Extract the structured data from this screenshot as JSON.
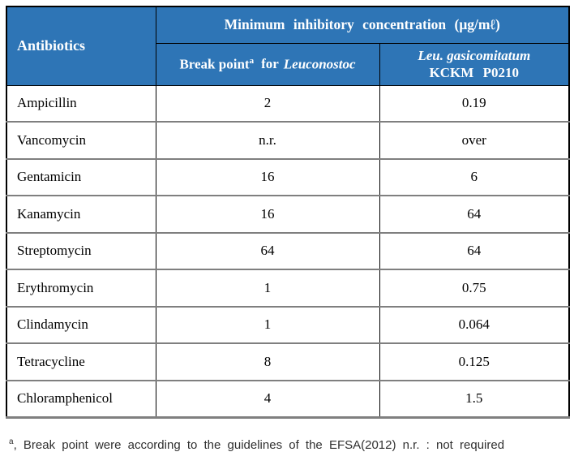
{
  "table": {
    "colors": {
      "header_bg": "#2E75B6",
      "header_text": "#ffffff",
      "row_divider": "#7f7f7f",
      "outer_border": "#000000"
    },
    "header": {
      "antibiotics_label": "Antibiotics",
      "mic_title": "Minimum inhibitory concentration (μg/mℓ)",
      "breakpoint_col": {
        "prefix": "Break point",
        "superscript": "a",
        "mid": "for",
        "species": "Leuconostoc"
      },
      "strain_col": {
        "line1": "Leu. gasicomitatum",
        "line2": "KCKM P0210"
      }
    },
    "rows": [
      {
        "name": "Ampicillin",
        "breakpoint": "2",
        "mic": "0.19"
      },
      {
        "name": "Vancomycin",
        "breakpoint": "n.r.",
        "mic": "over"
      },
      {
        "name": "Gentamicin",
        "breakpoint": "16",
        "mic": "6"
      },
      {
        "name": "Kanamycin",
        "breakpoint": "16",
        "mic": "64"
      },
      {
        "name": "Streptomycin",
        "breakpoint": "64",
        "mic": "64"
      },
      {
        "name": "Erythromycin",
        "breakpoint": "1",
        "mic": "0.75"
      },
      {
        "name": "Clindamycin",
        "breakpoint": "1",
        "mic": "0.064"
      },
      {
        "name": "Tetracycline",
        "breakpoint": "8",
        "mic": "0.125"
      },
      {
        "name": "Chloramphenicol",
        "breakpoint": "4",
        "mic": "1.5"
      }
    ]
  },
  "footnote": {
    "superscript": "a",
    "text": ", Break point were according to the guidelines of the EFSA(2012)  n.r. : not required"
  }
}
